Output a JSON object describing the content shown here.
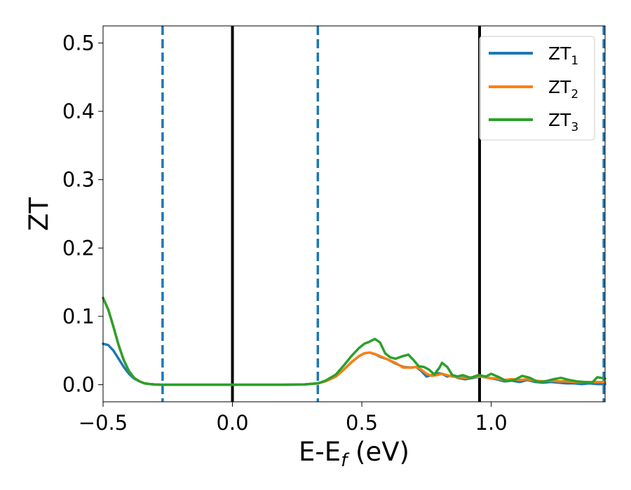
{
  "chart_data": {
    "type": "line",
    "xlabel": "E-E",
    "xlabel_subscript": "f",
    "xlabel_unit": " (eV)",
    "ylabel": "ZT",
    "xlim": [
      -0.5,
      1.44
    ],
    "ylim": [
      -0.025,
      0.525
    ],
    "grid": false,
    "legend_position": "top-right",
    "x_ticks": [
      -0.5,
      0.0,
      0.5,
      1.0
    ],
    "x_tick_labels": [
      "−0.5",
      "0.0",
      "0.5",
      "1.0"
    ],
    "y_ticks": [
      0.0,
      0.1,
      0.2,
      0.3,
      0.4,
      0.5
    ],
    "y_tick_labels": [
      "0.0",
      "0.1",
      "0.2",
      "0.3",
      "0.4",
      "0.5"
    ],
    "vertical_lines": [
      {
        "x": -0.27,
        "style": "dashed",
        "color": "#1f77b4"
      },
      {
        "x": 0.0,
        "style": "solid",
        "color": "#000000"
      },
      {
        "x": 0.33,
        "style": "dashed",
        "color": "#1f77b4"
      },
      {
        "x": 0.955,
        "style": "solid",
        "color": "#000000"
      },
      {
        "x": 1.435,
        "style": "dashed",
        "color": "#1f77b4"
      }
    ],
    "series": [
      {
        "name": "ZT",
        "subscript": "1",
        "color": "#1f77b4",
        "x": [
          -0.5,
          -0.48,
          -0.46,
          -0.44,
          -0.42,
          -0.4,
          -0.38,
          -0.36,
          -0.34,
          -0.32,
          -0.3,
          -0.28,
          -0.25,
          -0.2,
          -0.1,
          0.0,
          0.1,
          0.2,
          0.28,
          0.33,
          0.36,
          0.4,
          0.43,
          0.46,
          0.49,
          0.51,
          0.53,
          0.55,
          0.57,
          0.6,
          0.63,
          0.66,
          0.69,
          0.71,
          0.73,
          0.75,
          0.77,
          0.79,
          0.81,
          0.83,
          0.85,
          0.87,
          0.9,
          0.93,
          0.96,
          0.99,
          1.02,
          1.05,
          1.08,
          1.11,
          1.14,
          1.17,
          1.2,
          1.23,
          1.26,
          1.29,
          1.32,
          1.35,
          1.38,
          1.41,
          1.44
        ],
        "y": [
          0.06,
          0.058,
          0.05,
          0.038,
          0.026,
          0.016,
          0.009,
          0.005,
          0.002,
          0.001,
          0.0004,
          0.0001,
          0.0,
          0.0,
          0.0,
          0.0,
          0.0,
          0.0,
          0.0005,
          0.002,
          0.005,
          0.012,
          0.022,
          0.033,
          0.042,
          0.046,
          0.047,
          0.045,
          0.041,
          0.037,
          0.031,
          0.026,
          0.025,
          0.026,
          0.02,
          0.012,
          0.014,
          0.017,
          0.016,
          0.012,
          0.014,
          0.01,
          0.008,
          0.01,
          0.012,
          0.01,
          0.008,
          0.005,
          0.006,
          0.004,
          0.007,
          0.004,
          0.003,
          0.004,
          0.003,
          0.002,
          0.002,
          0.001,
          0.002,
          0.001,
          0.001
        ]
      },
      {
        "name": "ZT",
        "subscript": "2",
        "color": "#ff7f0e",
        "x": [
          -0.5,
          -0.48,
          -0.46,
          -0.44,
          -0.42,
          -0.4,
          -0.38,
          -0.36,
          -0.34,
          -0.32,
          -0.3,
          -0.28,
          -0.25,
          -0.2,
          -0.1,
          0.0,
          0.1,
          0.2,
          0.28,
          0.33,
          0.36,
          0.4,
          0.43,
          0.46,
          0.49,
          0.51,
          0.53,
          0.55,
          0.57,
          0.6,
          0.63,
          0.66,
          0.69,
          0.71,
          0.73,
          0.75,
          0.77,
          0.79,
          0.81,
          0.83,
          0.85,
          0.87,
          0.9,
          0.93,
          0.96,
          0.99,
          1.02,
          1.05,
          1.08,
          1.11,
          1.14,
          1.17,
          1.2,
          1.23,
          1.26,
          1.29,
          1.32,
          1.35,
          1.38,
          1.41,
          1.44
        ],
        "y": [
          0.127,
          0.11,
          0.085,
          0.058,
          0.036,
          0.02,
          0.01,
          0.005,
          0.002,
          0.001,
          0.0004,
          0.0001,
          0.0,
          0.0,
          0.0,
          0.0,
          0.0,
          0.0,
          0.0005,
          0.002,
          0.005,
          0.012,
          0.022,
          0.033,
          0.042,
          0.046,
          0.047,
          0.045,
          0.042,
          0.037,
          0.032,
          0.025,
          0.025,
          0.026,
          0.022,
          0.016,
          0.013,
          0.014,
          0.016,
          0.014,
          0.012,
          0.011,
          0.01,
          0.011,
          0.012,
          0.01,
          0.009,
          0.007,
          0.008,
          0.007,
          0.008,
          0.006,
          0.005,
          0.006,
          0.005,
          0.005,
          0.004,
          0.004,
          0.004,
          0.004,
          0.004
        ]
      },
      {
        "name": "ZT",
        "subscript": "3",
        "color": "#2ca02c",
        "x": [
          -0.5,
          -0.48,
          -0.46,
          -0.44,
          -0.42,
          -0.4,
          -0.38,
          -0.36,
          -0.34,
          -0.32,
          -0.3,
          -0.28,
          -0.25,
          -0.2,
          -0.1,
          0.0,
          0.1,
          0.2,
          0.28,
          0.33,
          0.36,
          0.4,
          0.43,
          0.46,
          0.49,
          0.51,
          0.53,
          0.55,
          0.57,
          0.59,
          0.61,
          0.63,
          0.66,
          0.68,
          0.7,
          0.72,
          0.74,
          0.76,
          0.78,
          0.8,
          0.81,
          0.83,
          0.85,
          0.87,
          0.89,
          0.92,
          0.95,
          0.98,
          1.0,
          1.03,
          1.06,
          1.09,
          1.12,
          1.15,
          1.18,
          1.21,
          1.24,
          1.27,
          1.3,
          1.33,
          1.36,
          1.39,
          1.41,
          1.44
        ],
        "y": [
          0.127,
          0.11,
          0.085,
          0.058,
          0.036,
          0.02,
          0.01,
          0.005,
          0.002,
          0.001,
          0.0004,
          0.0001,
          0.0,
          0.0,
          0.0,
          0.0,
          0.0,
          0.0,
          0.0005,
          0.002,
          0.006,
          0.015,
          0.028,
          0.042,
          0.054,
          0.06,
          0.063,
          0.067,
          0.062,
          0.046,
          0.04,
          0.038,
          0.042,
          0.044,
          0.036,
          0.027,
          0.026,
          0.022,
          0.015,
          0.025,
          0.032,
          0.026,
          0.014,
          0.012,
          0.014,
          0.01,
          0.014,
          0.012,
          0.016,
          0.011,
          0.005,
          0.007,
          0.013,
          0.01,
          0.004,
          0.005,
          0.008,
          0.01,
          0.007,
          0.005,
          0.004,
          0.003,
          0.011,
          0.009
        ]
      }
    ]
  }
}
